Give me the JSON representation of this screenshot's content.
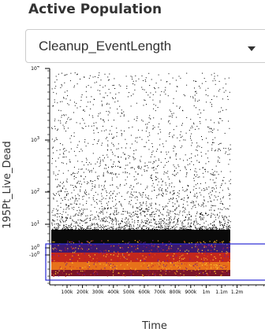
{
  "header": {
    "title": "Active Population"
  },
  "population_select": {
    "value": "Cleanup_EventLength"
  },
  "plot": {
    "xlabel": "Time",
    "ylabel": "195Pt_Live_Dead",
    "x_ticks": [
      "100k",
      "200k",
      "300k",
      "400k",
      "500k",
      "600k",
      "700k",
      "800k",
      "900k",
      "1m",
      "1.1m",
      "1.2m"
    ],
    "y_ticks": [
      {
        "base": "10",
        "exp": "4"
      },
      {
        "base": "10",
        "exp": "3"
      },
      {
        "base": "10",
        "exp": "2"
      },
      {
        "base": "10",
        "exp": "1"
      },
      {
        "base": "10",
        "exp": "0"
      },
      {
        "base": "-10",
        "exp": "0"
      }
    ],
    "gate_color": "#2a2ad4"
  }
}
